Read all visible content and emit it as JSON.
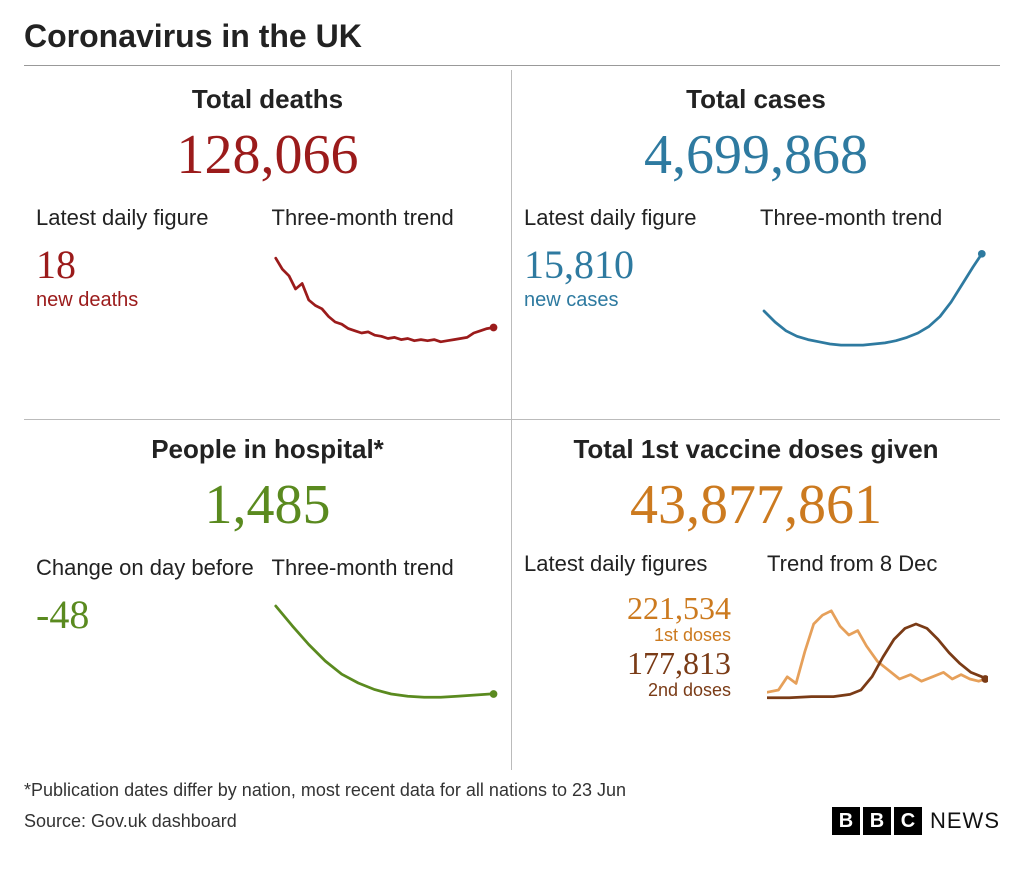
{
  "title": "Coronavirus in the UK",
  "panels": {
    "deaths": {
      "title": "Total deaths",
      "total": "128,066",
      "color": "#9b1b1b",
      "sub_left_label": "Latest daily figure",
      "sub_left_value": "18",
      "sub_left_caption": "new deaths",
      "sub_right_label": "Three-month trend",
      "spark": {
        "stroke": "#9b1b1b",
        "stroke_width": 2.5,
        "points": [
          [
            0,
            12
          ],
          [
            6,
            22
          ],
          [
            12,
            28
          ],
          [
            18,
            40
          ],
          [
            24,
            35
          ],
          [
            30,
            50
          ],
          [
            36,
            55
          ],
          [
            42,
            58
          ],
          [
            48,
            65
          ],
          [
            54,
            70
          ],
          [
            60,
            72
          ],
          [
            66,
            76
          ],
          [
            72,
            78
          ],
          [
            78,
            80
          ],
          [
            84,
            79
          ],
          [
            90,
            82
          ],
          [
            96,
            83
          ],
          [
            102,
            85
          ],
          [
            108,
            84
          ],
          [
            114,
            86
          ],
          [
            120,
            85
          ],
          [
            126,
            87
          ],
          [
            132,
            86
          ],
          [
            138,
            87
          ],
          [
            144,
            86
          ],
          [
            150,
            88
          ],
          [
            156,
            87
          ],
          [
            162,
            86
          ],
          [
            168,
            85
          ],
          [
            174,
            84
          ],
          [
            180,
            80
          ],
          [
            186,
            78
          ],
          [
            192,
            76
          ],
          [
            198,
            75
          ]
        ],
        "end_dot": true
      }
    },
    "cases": {
      "title": "Total cases",
      "total": "4,699,868",
      "color": "#2e7aa0",
      "sub_left_label": "Latest daily figure",
      "sub_left_value": "15,810",
      "sub_left_caption": "new cases",
      "sub_right_label": "Three-month trend",
      "spark": {
        "stroke": "#2e7aa0",
        "stroke_width": 2.5,
        "points": [
          [
            0,
            60
          ],
          [
            10,
            70
          ],
          [
            20,
            78
          ],
          [
            30,
            83
          ],
          [
            40,
            86
          ],
          [
            50,
            88
          ],
          [
            60,
            90
          ],
          [
            70,
            91
          ],
          [
            80,
            91
          ],
          [
            90,
            91
          ],
          [
            100,
            90
          ],
          [
            110,
            89
          ],
          [
            120,
            87
          ],
          [
            130,
            84
          ],
          [
            140,
            80
          ],
          [
            150,
            74
          ],
          [
            160,
            65
          ],
          [
            170,
            52
          ],
          [
            180,
            36
          ],
          [
            190,
            20
          ],
          [
            198,
            8
          ]
        ],
        "end_dot": true
      }
    },
    "hospital": {
      "title": "People in hospital*",
      "total": "1,485",
      "color": "#5a8a1f",
      "sub_left_label": "Change on day before",
      "sub_left_value": "-48",
      "sub_left_caption": "",
      "sub_right_label": "Three-month trend",
      "spark": {
        "stroke": "#5a8a1f",
        "stroke_width": 2.5,
        "points": [
          [
            0,
            10
          ],
          [
            15,
            28
          ],
          [
            30,
            45
          ],
          [
            45,
            60
          ],
          [
            60,
            72
          ],
          [
            75,
            80
          ],
          [
            90,
            86
          ],
          [
            105,
            90
          ],
          [
            120,
            92
          ],
          [
            135,
            93
          ],
          [
            150,
            93
          ],
          [
            165,
            92
          ],
          [
            180,
            91
          ],
          [
            195,
            90
          ],
          [
            198,
            90
          ]
        ],
        "end_dot": true
      }
    },
    "vaccines": {
      "title": "Total 1st vaccine doses given",
      "total": "43,877,861",
      "color": "#cc7a1f",
      "sub_left_label": "Latest daily figures",
      "sub_right_label": "Trend from 8 Dec",
      "first_value": "221,534",
      "first_caption": "1st doses",
      "first_color": "#cc7a1f",
      "second_value": "177,813",
      "second_caption": "2nd doses",
      "second_color": "#7a3b16",
      "spark1": {
        "stroke": "#e6a05a",
        "stroke_width": 2.5,
        "points": [
          [
            0,
            92
          ],
          [
            10,
            90
          ],
          [
            18,
            78
          ],
          [
            26,
            84
          ],
          [
            34,
            55
          ],
          [
            42,
            30
          ],
          [
            50,
            22
          ],
          [
            58,
            18
          ],
          [
            66,
            32
          ],
          [
            74,
            40
          ],
          [
            82,
            36
          ],
          [
            90,
            50
          ],
          [
            100,
            64
          ],
          [
            110,
            72
          ],
          [
            120,
            80
          ],
          [
            130,
            76
          ],
          [
            140,
            82
          ],
          [
            150,
            78
          ],
          [
            160,
            74
          ],
          [
            168,
            80
          ],
          [
            176,
            76
          ],
          [
            184,
            80
          ],
          [
            192,
            82
          ],
          [
            198,
            80
          ]
        ],
        "end_dot": false
      },
      "spark2": {
        "stroke": "#7a3b16",
        "stroke_width": 2.5,
        "points": [
          [
            0,
            97
          ],
          [
            20,
            97
          ],
          [
            40,
            96
          ],
          [
            60,
            96
          ],
          [
            75,
            94
          ],
          [
            85,
            90
          ],
          [
            95,
            78
          ],
          [
            105,
            60
          ],
          [
            115,
            44
          ],
          [
            125,
            34
          ],
          [
            135,
            30
          ],
          [
            145,
            34
          ],
          [
            155,
            44
          ],
          [
            165,
            56
          ],
          [
            175,
            66
          ],
          [
            185,
            74
          ],
          [
            195,
            78
          ],
          [
            198,
            80
          ]
        ],
        "end_dot": true
      }
    }
  },
  "footnote": "*Publication dates differ by nation, most recent data for all nations to 23 Jun",
  "source": "Source: Gov.uk dashboard",
  "logo": {
    "letters": [
      "B",
      "B",
      "C"
    ],
    "word": "NEWS"
  }
}
